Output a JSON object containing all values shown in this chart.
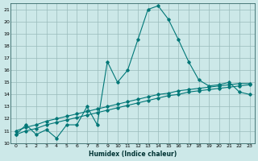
{
  "xlabel": "Humidex (Indice chaleur)",
  "bg_color": "#cce8e8",
  "grid_color": "#99bbbb",
  "line_color": "#007777",
  "xlim": [
    -0.5,
    23.5
  ],
  "ylim": [
    10,
    21.5
  ],
  "yticks": [
    10,
    11,
    12,
    13,
    14,
    15,
    16,
    17,
    18,
    19,
    20,
    21
  ],
  "xticks": [
    0,
    1,
    2,
    3,
    4,
    5,
    6,
    7,
    8,
    9,
    10,
    11,
    12,
    13,
    14,
    15,
    16,
    17,
    18,
    19,
    20,
    21,
    22,
    23
  ],
  "curve_x": [
    0,
    1,
    2,
    3,
    4,
    5,
    6,
    7,
    8,
    9,
    10,
    11,
    12,
    13,
    14,
    15,
    16,
    17,
    18,
    19,
    20,
    21,
    22,
    23
  ],
  "curve_y": [
    10.7,
    11.5,
    10.7,
    11.1,
    10.4,
    11.5,
    11.5,
    13.0,
    11.5,
    16.7,
    15.0,
    16.0,
    18.5,
    21.0,
    21.3,
    20.2,
    18.5,
    16.7,
    15.2,
    14.7,
    14.8,
    15.0,
    14.2,
    14.0
  ],
  "line1_x": [
    0,
    1,
    2,
    3,
    4,
    5,
    6,
    7,
    8,
    9,
    10,
    11,
    12,
    13,
    14,
    15,
    16,
    17,
    18,
    19,
    20,
    21,
    22,
    23
  ],
  "line1_y": [
    11.0,
    11.3,
    11.5,
    11.8,
    12.0,
    12.2,
    12.4,
    12.6,
    12.8,
    13.0,
    13.2,
    13.4,
    13.6,
    13.8,
    14.0,
    14.1,
    14.3,
    14.4,
    14.5,
    14.6,
    14.7,
    14.8,
    14.9,
    14.9
  ],
  "line2_x": [
    0,
    1,
    2,
    3,
    4,
    5,
    6,
    7,
    8,
    9,
    10,
    11,
    12,
    13,
    14,
    15,
    16,
    17,
    18,
    19,
    20,
    21,
    22,
    23
  ],
  "line2_y": [
    10.7,
    11.0,
    11.2,
    11.5,
    11.7,
    11.9,
    12.1,
    12.3,
    12.5,
    12.7,
    12.9,
    13.1,
    13.3,
    13.5,
    13.7,
    13.9,
    14.0,
    14.2,
    14.3,
    14.4,
    14.5,
    14.6,
    14.7,
    14.8
  ]
}
